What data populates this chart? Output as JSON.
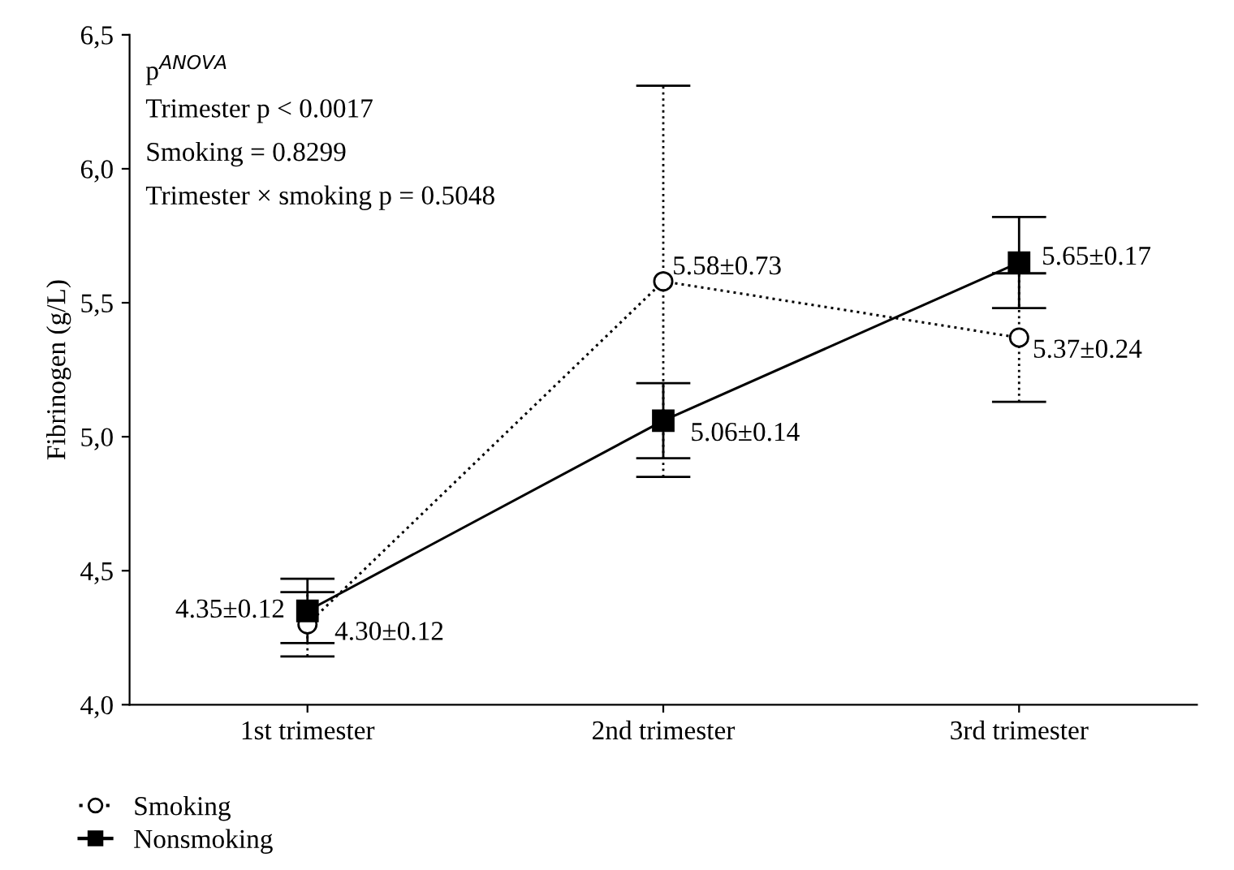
{
  "chart_data": {
    "type": "line",
    "ylabel": "Fibrinogen (g/L)",
    "categories": [
      "1st trimester",
      "2nd trimester",
      "3rd trimester"
    ],
    "series": [
      {
        "name": "Smoking",
        "color": "#000000",
        "values": [
          4.3,
          5.58,
          5.37
        ],
        "errors": [
          0.12,
          0.73,
          0.24
        ],
        "value_labels": [
          "4.30±0.12",
          "5.58±0.73",
          "5.37±0.24"
        ],
        "marker": "circle",
        "line_style": "dotted"
      },
      {
        "name": "Nonsmoking",
        "color": "#000000",
        "values": [
          4.35,
          5.06,
          5.65
        ],
        "errors": [
          0.12,
          0.14,
          0.17
        ],
        "value_labels": [
          "4.35±0.12",
          "5.06±0.14",
          "5.65±0.17"
        ],
        "marker": "square",
        "line_style": "solid"
      }
    ],
    "ylim": [
      4.0,
      6.5
    ],
    "yticks": [
      {
        "value": 4.0,
        "label": "4,0"
      },
      {
        "value": 4.5,
        "label": "4,5"
      },
      {
        "value": 5.0,
        "label": "5,0"
      },
      {
        "value": 5.5,
        "label": "5,5"
      },
      {
        "value": 6.0,
        "label": "6,0"
      },
      {
        "value": 6.5,
        "label": "6,5"
      }
    ],
    "annotations": [
      "p$^{ANOVA}$",
      "Trimester p < 0.0017",
      "Smoking = 0.8299",
      "Trimester × smoking p = 0.5048"
    ],
    "grid": false,
    "legend": "bottom left"
  }
}
